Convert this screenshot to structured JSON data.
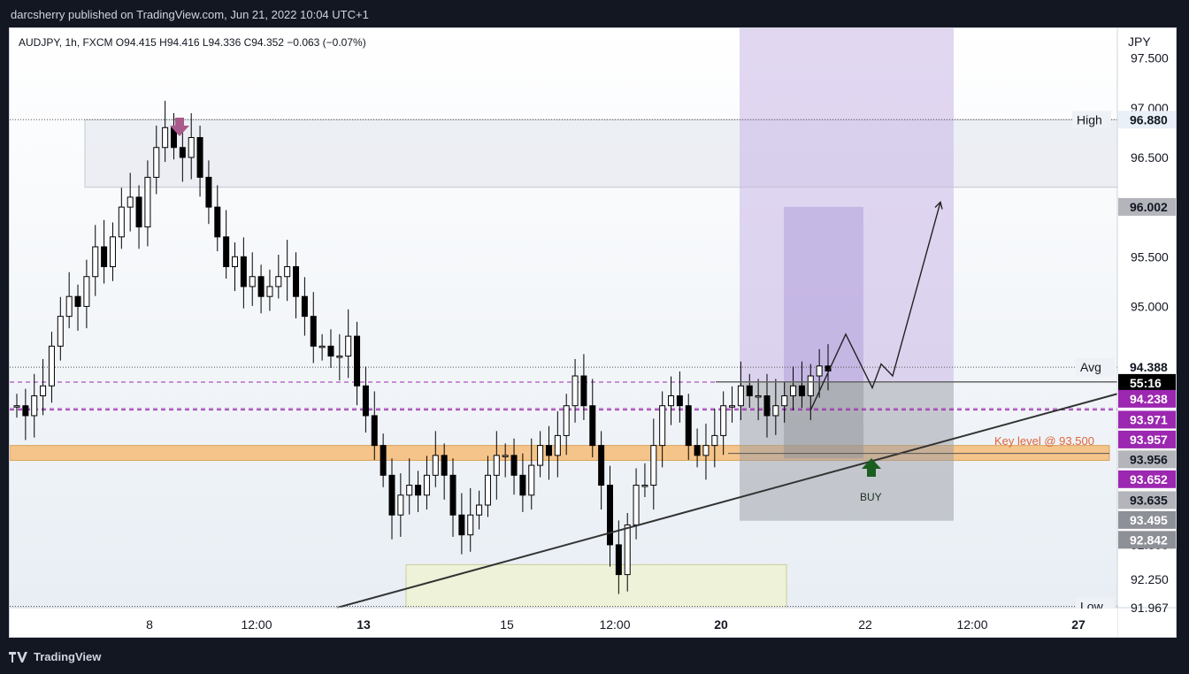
{
  "header": {
    "publisher_line": "darcsherry published on TradingView.com, Jun 21, 2022 10:04 UTC+1"
  },
  "footer": {
    "brand": "TradingView"
  },
  "colors": {
    "background": "#131722",
    "chart_bg": "#ffffff",
    "candle": "#000000",
    "zone_high": "#e9ecf2",
    "zone_low": "#eef2d8",
    "key_level": "#f5c48a",
    "purple_zone": "#c9b7e6",
    "gray_zone": "#9a9ca3",
    "purple_line": "#9c27b0",
    "buy_arrow": "#1b5e20",
    "sell_arrow": "#a85a8a",
    "label_purple": "#9c27b0",
    "label_gray": "#b3b5bb"
  },
  "chart_data": {
    "type": "candlestick",
    "symbol_line": "AUDJPY, 1h, FXCM  O94.415  H94.416  L94.336  C94.352  −0.063 (−0.07%)",
    "currency": "JPY",
    "ylim": [
      91.967,
      97.8
    ],
    "y_ticks": [
      "97.500",
      "97.000",
      "96.500",
      "95.500",
      "95.000",
      "92.600",
      "92.250",
      "91.967"
    ],
    "x_ticks": [
      {
        "label": "8",
        "bold": false
      },
      {
        "label": "12:00",
        "bold": false
      },
      {
        "label": "13",
        "bold": true
      },
      {
        "label": "15",
        "bold": false
      },
      {
        "label": "12:00",
        "bold": false
      },
      {
        "label": "20",
        "bold": true
      },
      {
        "label": "22",
        "bold": false
      },
      {
        "label": "12:00",
        "bold": false
      },
      {
        "label": "27",
        "bold": true
      }
    ],
    "price_labels": [
      {
        "text": "96.880",
        "style": "light",
        "price": 96.88
      },
      {
        "text": "96.002",
        "style": "gray",
        "price": 96.002
      },
      {
        "text": "94.388",
        "style": "plain",
        "price": 94.388
      },
      {
        "text": "55:16",
        "style": "black",
        "price": 94.23
      },
      {
        "text": "94.238",
        "style": "purple",
        "price": 94.07
      },
      {
        "text": "93.971",
        "style": "purple",
        "price": 93.86
      },
      {
        "text": "93.957",
        "style": "purple",
        "price": 93.66
      },
      {
        "text": "93.956",
        "style": "gray",
        "price": 93.46
      },
      {
        "text": "93.652",
        "style": "purple",
        "price": 93.26
      },
      {
        "text": "93.635",
        "style": "gray",
        "price": 93.05
      },
      {
        "text": "93.495",
        "style": "dark",
        "price": 92.85
      },
      {
        "text": "92.842",
        "style": "dark",
        "price": 92.65
      }
    ],
    "annotations": {
      "high_label": "High",
      "avg_label": "Avg",
      "low_label": "Low",
      "key_level_text": "Key level @ 93.500",
      "buy_text": "BUY"
    },
    "zones": {
      "supply_zone": [
        96.2,
        96.88
      ],
      "demand_zone": [
        91.967,
        92.4
      ],
      "key_level_band": [
        93.45,
        93.6
      ],
      "long_target": 96.002,
      "long_stop": 92.842,
      "long_entry": 94.238
    },
    "levels": {
      "dashed_1": 94.238,
      "dashed_2": 93.971,
      "dashed_3": 93.957,
      "high": 96.88,
      "avg": 94.388
    },
    "closes": [
      94.0,
      93.9,
      94.1,
      94.2,
      94.6,
      94.9,
      95.1,
      95.0,
      95.3,
      95.6,
      95.4,
      95.7,
      96.0,
      96.1,
      95.8,
      96.3,
      96.6,
      96.8,
      96.6,
      96.5,
      96.7,
      96.3,
      96.0,
      95.7,
      95.4,
      95.5,
      95.2,
      95.3,
      95.1,
      95.2,
      95.3,
      95.4,
      95.1,
      94.9,
      94.6,
      94.6,
      94.5,
      94.5,
      94.7,
      94.2,
      93.9,
      93.6,
      93.3,
      92.9,
      93.1,
      93.2,
      93.1,
      93.3,
      93.5,
      93.3,
      92.9,
      92.7,
      92.9,
      93.0,
      93.3,
      93.5,
      93.5,
      93.3,
      93.1,
      93.4,
      93.6,
      93.5,
      93.7,
      94.0,
      94.3,
      94.0,
      93.6,
      93.2,
      92.6,
      92.3,
      92.8,
      93.2,
      93.2,
      93.6,
      94.0,
      94.1,
      94.0,
      93.6,
      93.5,
      93.6,
      93.7,
      94.0,
      94.0,
      94.2,
      94.1,
      94.1,
      93.9,
      94.0,
      94.1,
      94.2,
      94.1,
      94.3,
      94.4,
      94.35
    ]
  }
}
